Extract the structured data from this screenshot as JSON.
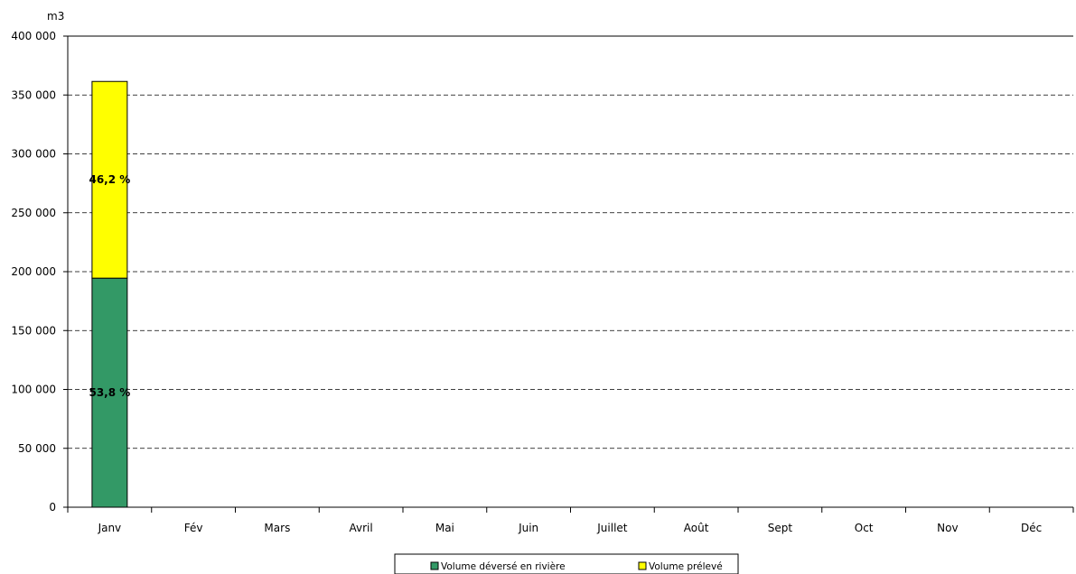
{
  "chart_data": {
    "type": "bar",
    "stacked": true,
    "unit_label": "m3",
    "categories": [
      "Janv",
      "Fév",
      "Mars",
      "Avril",
      "Mai",
      "Juin",
      "Juillet",
      "Août",
      "Sept",
      "Oct",
      "Nov",
      "Déc"
    ],
    "ylim": [
      0,
      400000
    ],
    "yticks": [
      0,
      50000,
      100000,
      150000,
      200000,
      250000,
      300000,
      350000,
      400000
    ],
    "ytick_labels": [
      "0",
      "50 000",
      "100 000",
      "150 000",
      "200 000",
      "250 000",
      "300 000",
      "350 000",
      "400 000"
    ],
    "grid": "horizontal-dashed",
    "legend_position": "bottom-center",
    "series": [
      {
        "name": "Volume déversé en  rivière",
        "color": "#339966",
        "values": [
          194500,
          0,
          0,
          0,
          0,
          0,
          0,
          0,
          0,
          0,
          0,
          0
        ],
        "data_labels": [
          "53,8 %",
          "",
          "",
          "",
          "",
          "",
          "",
          "",
          "",
          "",
          "",
          ""
        ]
      },
      {
        "name": "Volume prélevé",
        "color": "#ffff00",
        "values": [
          167000,
          0,
          0,
          0,
          0,
          0,
          0,
          0,
          0,
          0,
          0,
          0
        ],
        "data_labels": [
          "46,2 %",
          "",
          "",
          "",
          "",
          "",
          "",
          "",
          "",
          "",
          "",
          ""
        ]
      }
    ]
  }
}
